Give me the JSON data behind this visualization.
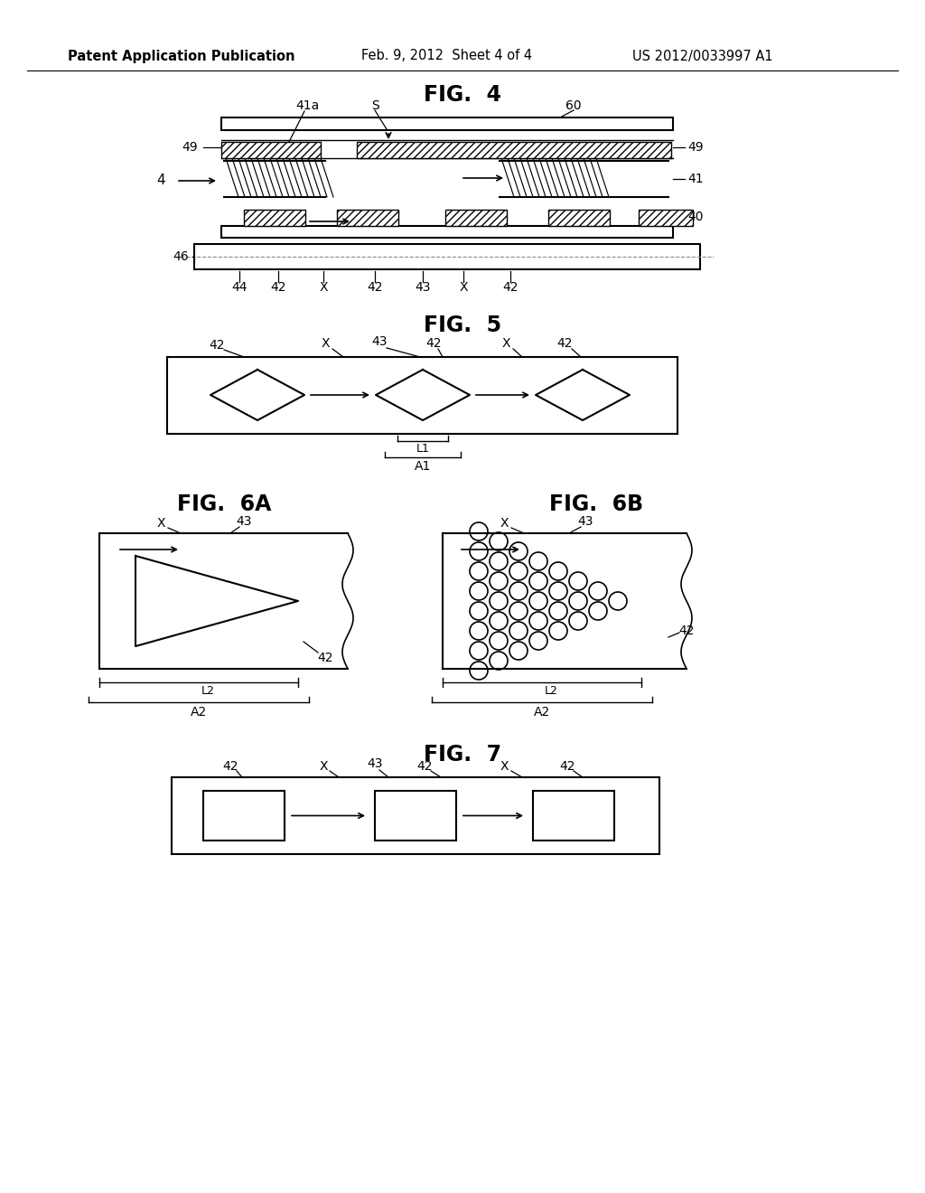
{
  "bg_color": "#ffffff",
  "header_left": "Patent Application Publication",
  "header_mid": "Feb. 9, 2012  Sheet 4 of 4",
  "header_right": "US 2012/0033997 A1"
}
